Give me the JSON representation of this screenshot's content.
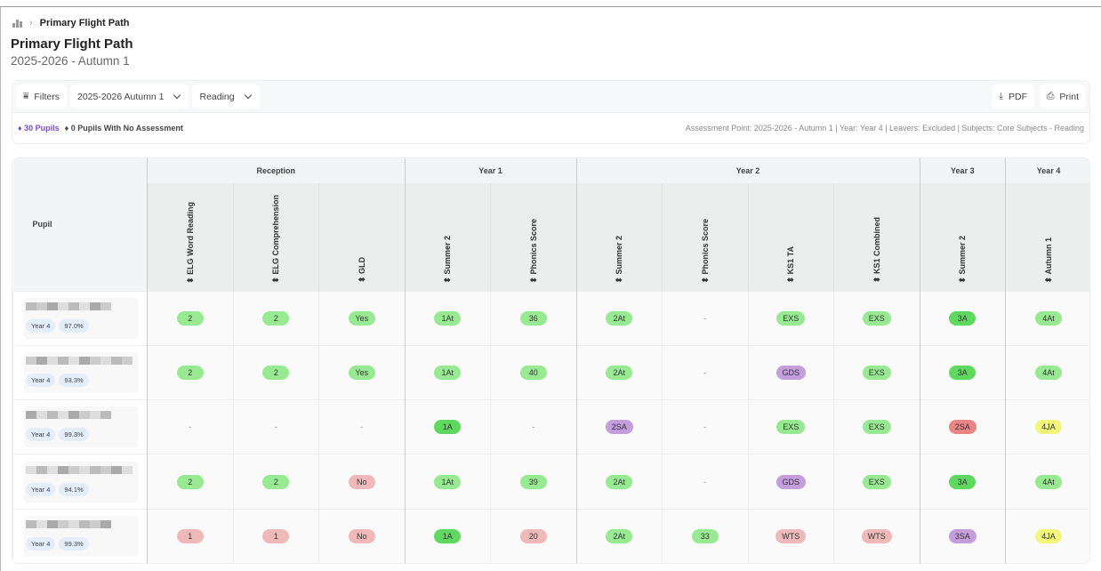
{
  "breadcrumb": {
    "current": "Primary Flight Path"
  },
  "page": {
    "title": "Primary Flight Path",
    "subtitle": "2025-2026 - Autumn 1"
  },
  "toolbar": {
    "filters": "Filters",
    "period": "2025-2026 Autumn 1",
    "subject": "Reading",
    "pdf": "PDF",
    "print": "Print"
  },
  "summary": {
    "pupils": "30 Pupils",
    "no_assessment": "0 Pupils With No Assessment",
    "meta": "Assessment Point: 2025-2026 - Autumn 1 | Year: Year 4 | Leavers: Excluded | Subjects: Core Subjects - Reading"
  },
  "colors": {
    "green": "#98ea92",
    "dark_green": "#5fd85f",
    "purple": "#c49ddc",
    "light_red": "#f0b9b9",
    "red": "#e98585",
    "yellow": "#f2f77c",
    "accent": "#7b4bc4"
  },
  "table": {
    "pupil_header": "Pupil",
    "groups": [
      {
        "label": "Reception",
        "span": 3
      },
      {
        "label": "Year 1",
        "span": 2
      },
      {
        "label": "Year 2",
        "span": 4
      },
      {
        "label": "Year 3",
        "span": 1
      },
      {
        "label": "Year 4",
        "span": 1
      }
    ],
    "columns": [
      "ELG Word Reading",
      "ELG Comprehension",
      "GLD",
      "Summer 2",
      "Phonics Score",
      "Summer 2",
      "Phonics Score",
      "KS1 TA",
      "KS1 Combined",
      "Summer 2",
      "Autumn 1"
    ],
    "rows": [
      {
        "year": "Year 4",
        "attendance": "97.0%",
        "cells": [
          [
            "2",
            "green"
          ],
          [
            "2",
            "green"
          ],
          [
            "Yes",
            "green"
          ],
          [
            "1At",
            "green"
          ],
          [
            "36",
            "green"
          ],
          [
            "2At",
            "green"
          ],
          [
            "-",
            ""
          ],
          [
            "EXS",
            "green"
          ],
          [
            "EXS",
            "green"
          ],
          [
            "3A",
            "dark_green"
          ],
          [
            "4At",
            "green"
          ]
        ]
      },
      {
        "year": "Year 4",
        "attendance": "93.3%",
        "cells": [
          [
            "2",
            "green"
          ],
          [
            "2",
            "green"
          ],
          [
            "Yes",
            "green"
          ],
          [
            "1At",
            "green"
          ],
          [
            "40",
            "green"
          ],
          [
            "2At",
            "green"
          ],
          [
            "-",
            ""
          ],
          [
            "GDS",
            "purple"
          ],
          [
            "EXS",
            "green"
          ],
          [
            "3A",
            "dark_green"
          ],
          [
            "4At",
            "green"
          ]
        ]
      },
      {
        "year": "Year 4",
        "attendance": "99.3%",
        "cells": [
          [
            "-",
            ""
          ],
          [
            "-",
            ""
          ],
          [
            "-",
            ""
          ],
          [
            "1A",
            "dark_green"
          ],
          [
            "-",
            ""
          ],
          [
            "2SA",
            "purple"
          ],
          [
            "-",
            ""
          ],
          [
            "EXS",
            "green"
          ],
          [
            "EXS",
            "green"
          ],
          [
            "2SA",
            "red"
          ],
          [
            "4JA",
            "yellow"
          ]
        ]
      },
      {
        "year": "Year 4",
        "attendance": "94.1%",
        "cells": [
          [
            "2",
            "green"
          ],
          [
            "2",
            "green"
          ],
          [
            "No",
            "light_red"
          ],
          [
            "1At",
            "green"
          ],
          [
            "39",
            "green"
          ],
          [
            "2At",
            "green"
          ],
          [
            "-",
            ""
          ],
          [
            "GDS",
            "purple"
          ],
          [
            "EXS",
            "green"
          ],
          [
            "3A",
            "dark_green"
          ],
          [
            "4At",
            "green"
          ]
        ]
      },
      {
        "year": "Year 4",
        "attendance": "99.3%",
        "cells": [
          [
            "1",
            "light_red"
          ],
          [
            "1",
            "light_red"
          ],
          [
            "No",
            "light_red"
          ],
          [
            "1A",
            "dark_green"
          ],
          [
            "20",
            "light_red"
          ],
          [
            "2At",
            "green"
          ],
          [
            "33",
            "green"
          ],
          [
            "WTS",
            "light_red"
          ],
          [
            "WTS",
            "light_red"
          ],
          [
            "3SA",
            "purple"
          ],
          [
            "4JA",
            "yellow"
          ]
        ]
      }
    ]
  }
}
